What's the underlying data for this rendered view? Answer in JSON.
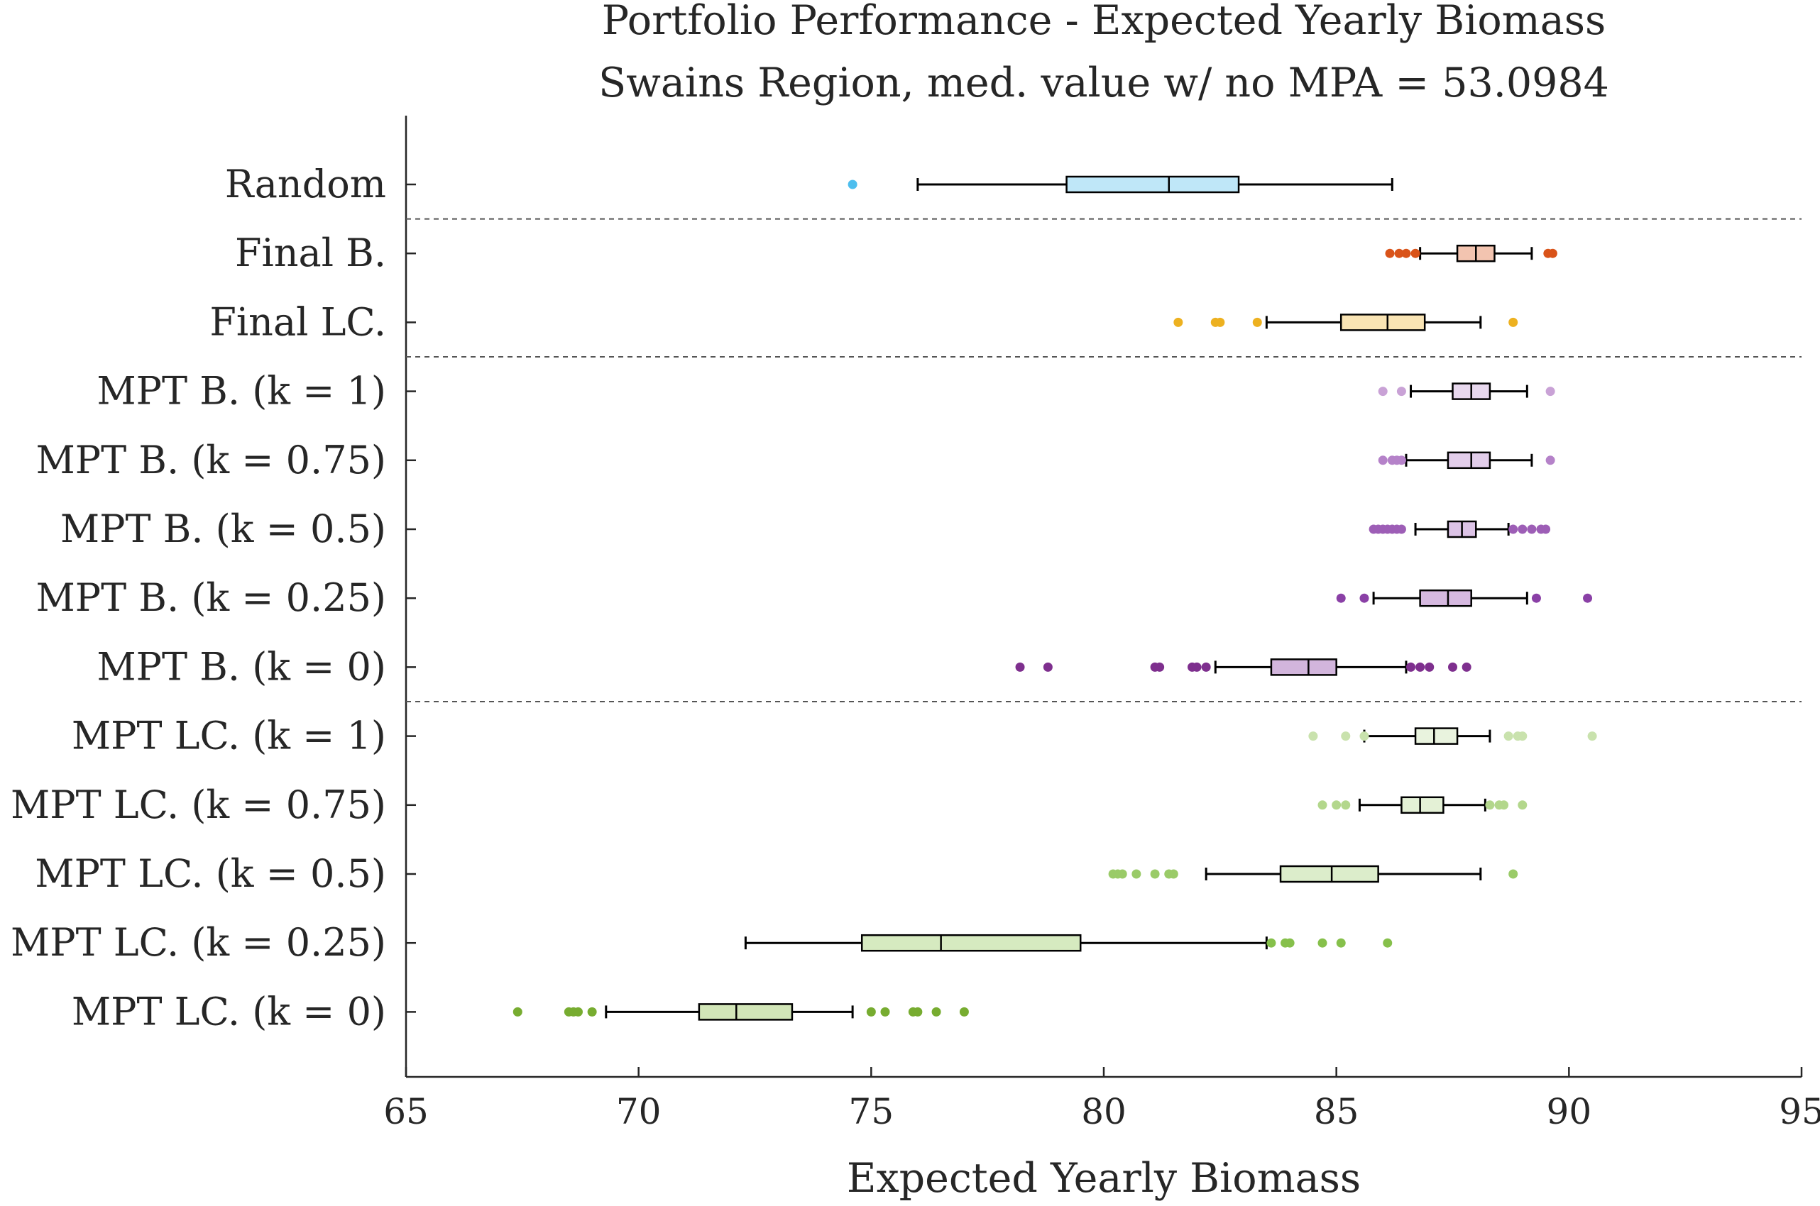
{
  "chart_data": {
    "type": "boxplot",
    "orientation": "horizontal",
    "title": "Portfolio Performance - Expected Yearly Biomass",
    "subtitle": "Swains Region, med. value w/ no MPA = 53.0984",
    "xlabel": "Expected Yearly Biomass",
    "ylabel": "",
    "xlim": [
      65,
      95
    ],
    "xticks": [
      "65",
      "70",
      "75",
      "80",
      "85",
      "90",
      "95"
    ],
    "grid": false,
    "legend": "none",
    "group_separators_after": [
      "Random",
      "Final LC.",
      "MPT B. (k = 0)"
    ],
    "categories": [
      "Random",
      "Final B.",
      "Final LC.",
      "MPT B. (k = 1)",
      "MPT B. (k = 0.75)",
      "MPT B. (k = 0.5)",
      "MPT B. (k = 0.25)",
      "MPT B. (k = 0)",
      "MPT LC. (k = 1)",
      "MPT LC. (k = 0.75)",
      "MPT LC. (k = 0.5)",
      "MPT LC. (k = 0.25)",
      "MPT LC. (k = 0)"
    ],
    "series": [
      {
        "whisker_low": 76.0,
        "q1": 79.2,
        "median": 81.4,
        "q3": 82.9,
        "whisker_high": 86.2,
        "outliers": [
          74.6
        ],
        "color": "#4dbeee",
        "fill": "#bfe7f8"
      },
      {
        "whisker_low": 86.8,
        "q1": 87.6,
        "median": 88.0,
        "q3": 88.4,
        "whisker_high": 89.2,
        "outliers": [
          86.15,
          86.35,
          86.5,
          86.7,
          89.55,
          89.65
        ],
        "color": "#d95319",
        "fill": "#f3c4b0"
      },
      {
        "whisker_low": 83.5,
        "q1": 85.1,
        "median": 86.1,
        "q3": 86.9,
        "whisker_high": 88.1,
        "outliers": [
          81.6,
          82.4,
          82.5,
          83.3,
          88.8
        ],
        "color": "#edb120",
        "fill": "#f9e4b4"
      },
      {
        "whisker_low": 86.6,
        "q1": 87.5,
        "median": 87.9,
        "q3": 88.3,
        "whisker_high": 89.1,
        "outliers": [
          86.0,
          86.4,
          89.6
        ],
        "color": "#c9a2d6",
        "fill": "#e8d8ee"
      },
      {
        "whisker_low": 86.5,
        "q1": 87.4,
        "median": 87.9,
        "q3": 88.3,
        "whisker_high": 89.2,
        "outliers": [
          86.0,
          86.2,
          86.3,
          86.4,
          89.6
        ],
        "color": "#b582c9",
        "fill": "#e2cdea"
      },
      {
        "whisker_low": 86.7,
        "q1": 87.4,
        "median": 87.7,
        "q3": 88.0,
        "whisker_high": 88.7,
        "outliers": [
          85.8,
          85.9,
          86.0,
          86.1,
          86.2,
          86.3,
          86.4,
          88.8,
          89.0,
          89.2,
          89.4,
          89.5
        ],
        "color": "#9d5eb6",
        "fill": "#dcc3e6"
      },
      {
        "whisker_low": 85.8,
        "q1": 86.8,
        "median": 87.4,
        "q3": 87.9,
        "whisker_high": 89.1,
        "outliers": [
          85.1,
          85.6,
          89.3,
          90.4
        ],
        "color": "#8a40a6",
        "fill": "#d6b9e0"
      },
      {
        "whisker_low": 82.4,
        "q1": 83.6,
        "median": 84.4,
        "q3": 85.0,
        "whisker_high": 86.5,
        "outliers": [
          78.2,
          78.8,
          81.1,
          81.2,
          81.9,
          82.0,
          82.2,
          86.6,
          86.8,
          87.0,
          87.5,
          87.8
        ],
        "color": "#7e2f8e",
        "fill": "#d2b5dc"
      },
      {
        "whisker_low": 85.6,
        "q1": 86.7,
        "median": 87.1,
        "q3": 87.6,
        "whisker_high": 88.3,
        "outliers": [
          84.5,
          85.2,
          85.6,
          88.7,
          88.9,
          89.0,
          90.5
        ],
        "color": "#c9e2ad",
        "fill": "#e9f3de"
      },
      {
        "whisker_low": 85.5,
        "q1": 86.4,
        "median": 86.8,
        "q3": 87.3,
        "whisker_high": 88.2,
        "outliers": [
          84.7,
          85.0,
          85.2,
          88.3,
          88.5,
          88.6,
          89.0
        ],
        "color": "#b3d78c",
        "fill": "#e4f1d6"
      },
      {
        "whisker_low": 82.2,
        "q1": 83.8,
        "median": 84.9,
        "q3": 85.9,
        "whisker_high": 88.1,
        "outliers": [
          80.2,
          80.3,
          80.4,
          80.7,
          81.1,
          81.4,
          81.5,
          88.8
        ],
        "color": "#9acb68",
        "fill": "#dcedcb"
      },
      {
        "whisker_low": 72.3,
        "q1": 74.8,
        "median": 76.5,
        "q3": 79.5,
        "whisker_high": 83.5,
        "outliers": [
          83.6,
          83.9,
          84.0,
          84.7,
          85.1,
          86.1
        ],
        "color": "#86c04b",
        "fill": "#d6eac0"
      },
      {
        "whisker_low": 69.3,
        "q1": 71.3,
        "median": 72.1,
        "q3": 73.3,
        "whisker_high": 74.6,
        "outliers": [
          67.4,
          68.5,
          68.6,
          68.7,
          69.0,
          75.0,
          75.3,
          75.9,
          76.0,
          76.4,
          77.0
        ],
        "color": "#77ac30",
        "fill": "#d2e6b8"
      }
    ]
  }
}
